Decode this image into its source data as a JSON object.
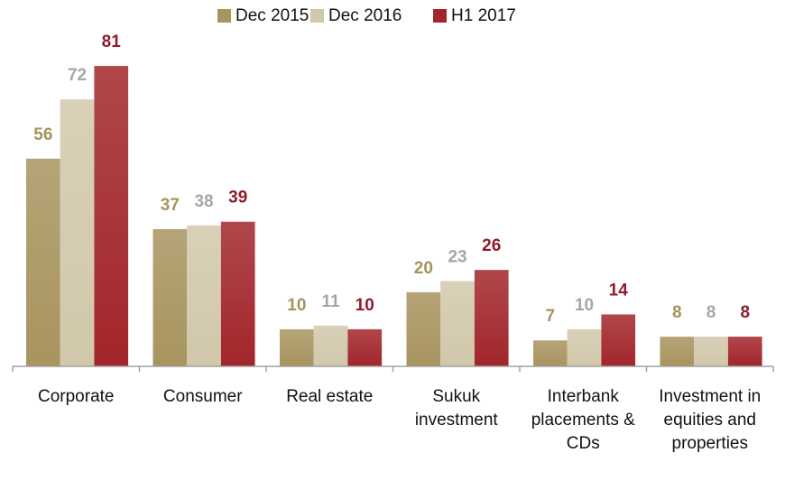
{
  "chart_data": {
    "type": "bar",
    "categories": [
      "Corporate",
      "Consumer",
      "Real estate",
      "Sukuk investment",
      "Interbank placements & CDs",
      "Investment in equities and properties"
    ],
    "series": [
      {
        "name": "Dec 2015",
        "color": "#a8945f",
        "label_color": "#a8935c",
        "values": [
          56,
          37,
          10,
          20,
          7,
          8
        ]
      },
      {
        "name": "Dec 2016",
        "color": "#d1c8ab",
        "label_color": "#a6a6a6",
        "values": [
          72,
          38,
          11,
          23,
          10,
          8
        ]
      },
      {
        "name": "H1 2017",
        "color": "#a2262b",
        "label_color": "#8f1c2c",
        "values": [
          81,
          39,
          10,
          26,
          14,
          8
        ]
      }
    ],
    "legend": "top"
  }
}
